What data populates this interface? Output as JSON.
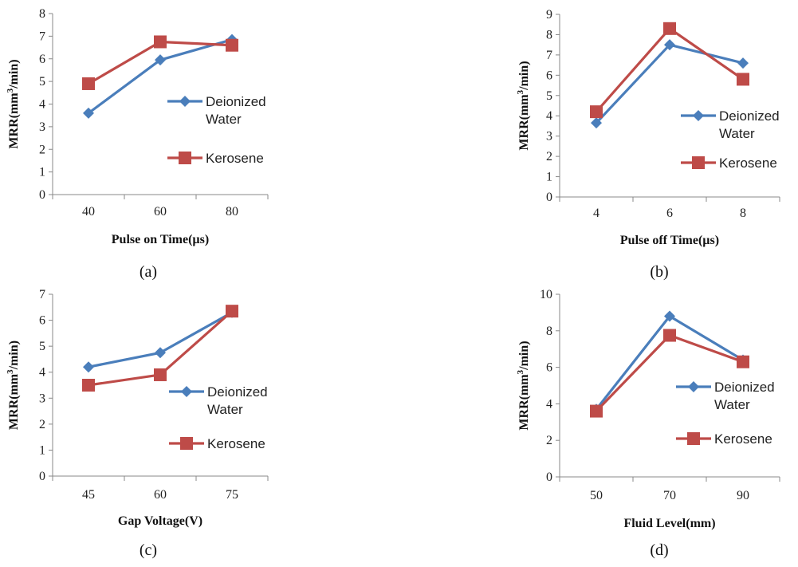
{
  "colors": {
    "deionized": "#4a7ebb",
    "kerosene": "#be4b48",
    "axis": "#888888"
  },
  "chart_data": [
    {
      "type": "line",
      "panel_label": "(a)",
      "xlabel": "Pulse on Time(µs)",
      "ylabel": "MRR(mm3/min)",
      "ylabel_parts": [
        "MRR(mm",
        "3",
        "/min)"
      ],
      "categories": [
        "40",
        "60",
        "80"
      ],
      "ylim": [
        0,
        8
      ],
      "yticks": [
        0,
        1,
        2,
        3,
        4,
        5,
        6,
        7,
        8
      ],
      "series": [
        {
          "name": "Deionized Water",
          "name_lines": [
            "Deionized",
            "Water"
          ],
          "marker": "diamond",
          "values": [
            3.6,
            5.95,
            6.85
          ]
        },
        {
          "name": "Kerosene",
          "name_lines": [
            "Kerosene"
          ],
          "marker": "square",
          "values": [
            4.9,
            6.75,
            6.6
          ]
        }
      ]
    },
    {
      "type": "line",
      "panel_label": "(b)",
      "xlabel": "Pulse off Time(µs)",
      "ylabel": "MRR(mm3/min)",
      "ylabel_parts": [
        "MRR(mm",
        "3",
        "/min)"
      ],
      "categories": [
        "4",
        "6",
        "8"
      ],
      "ylim": [
        0,
        9
      ],
      "yticks": [
        0,
        1,
        2,
        3,
        4,
        5,
        6,
        7,
        8,
        9
      ],
      "series": [
        {
          "name": "Deionized Water",
          "name_lines": [
            "Deionized",
            "Water"
          ],
          "marker": "diamond",
          "values": [
            3.65,
            7.5,
            6.6
          ]
        },
        {
          "name": "Kerosene",
          "name_lines": [
            "Kerosene"
          ],
          "marker": "square",
          "values": [
            4.2,
            8.3,
            5.8
          ]
        }
      ]
    },
    {
      "type": "line",
      "panel_label": "(c)",
      "xlabel": "Gap Voltage(V)",
      "ylabel": "MRR(mm3/min)",
      "ylabel_parts": [
        "MRR(mm",
        "3",
        "/min)"
      ],
      "categories": [
        "45",
        "60",
        "75"
      ],
      "ylim": [
        0,
        7
      ],
      "yticks": [
        0,
        1,
        2,
        3,
        4,
        5,
        6,
        7
      ],
      "series": [
        {
          "name": "Deionized Water",
          "name_lines": [
            "Deionized",
            "Water"
          ],
          "marker": "diamond",
          "values": [
            4.2,
            4.75,
            6.3
          ]
        },
        {
          "name": "Kerosene",
          "name_lines": [
            "Kerosene"
          ],
          "marker": "square",
          "values": [
            3.5,
            3.9,
            6.35
          ]
        }
      ]
    },
    {
      "type": "line",
      "panel_label": "(d)",
      "xlabel": "Fluid Level(mm)",
      "ylabel": "MRR(mm3/min)",
      "ylabel_parts": [
        "MRR(mm",
        "3",
        "/min)"
      ],
      "categories": [
        "50",
        "70",
        "90"
      ],
      "ylim": [
        0,
        10
      ],
      "yticks": [
        0,
        2,
        4,
        6,
        8,
        10
      ],
      "series": [
        {
          "name": "Deionized Water",
          "name_lines": [
            "Deionized",
            "Water"
          ],
          "marker": "diamond",
          "values": [
            3.7,
            8.8,
            6.4
          ]
        },
        {
          "name": "Kerosene",
          "name_lines": [
            "Kerosene"
          ],
          "marker": "square",
          "values": [
            3.6,
            7.75,
            6.3
          ]
        }
      ]
    }
  ]
}
